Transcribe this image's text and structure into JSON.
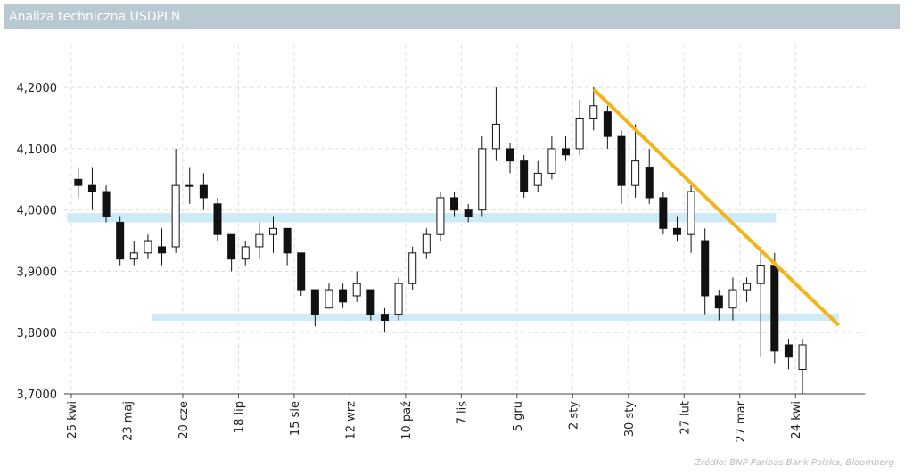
{
  "header": {
    "title": "Analiza techniczna USDPLN"
  },
  "source": "Źródło: BNP Paribas Bank Polska, Bloomberg",
  "chart_data": {
    "type": "candlestick",
    "categories": [
      "25 kwi",
      null,
      null,
      null,
      "23 maj",
      null,
      null,
      null,
      "20 cze",
      null,
      null,
      null,
      "18 lip",
      null,
      null,
      null,
      "15 sie",
      null,
      null,
      null,
      "12 wrz",
      null,
      null,
      null,
      "10 paź",
      null,
      null,
      null,
      "7 lis",
      null,
      null,
      null,
      "5 gru",
      null,
      null,
      null,
      "2 sty",
      null,
      null,
      null,
      "30 sty",
      null,
      null,
      null,
      "27 lut",
      null,
      null,
      null,
      "27 mar",
      null,
      null,
      null,
      "24 kwi",
      null,
      null,
      null,
      null
    ],
    "open": [
      4.05,
      4.04,
      4.03,
      3.98,
      3.92,
      3.93,
      3.94,
      3.94,
      4.04,
      4.04,
      4.01,
      3.96,
      3.92,
      3.94,
      3.96,
      3.97,
      3.93,
      3.87,
      3.84,
      3.87,
      3.86,
      3.87,
      3.83,
      3.83,
      3.88,
      3.93,
      3.96,
      4.02,
      4.0,
      4.0,
      4.1,
      4.1,
      4.08,
      4.04,
      4.06,
      4.1,
      4.1,
      4.15,
      4.16,
      4.12,
      4.04,
      4.07,
      4.02,
      3.97,
      3.96,
      3.95,
      3.86,
      3.84,
      3.87,
      3.88,
      3.91,
      3.78,
      3.74,
      null,
      null,
      null,
      null
    ],
    "high": [
      4.07,
      4.07,
      4.04,
      3.99,
      3.95,
      3.96,
      3.97,
      4.1,
      4.07,
      4.06,
      4.02,
      3.96,
      3.95,
      3.98,
      3.99,
      3.97,
      3.93,
      3.87,
      3.88,
      3.88,
      3.9,
      3.87,
      3.84,
      3.89,
      3.94,
      3.97,
      4.03,
      4.03,
      4.01,
      4.12,
      4.2,
      4.11,
      4.09,
      4.08,
      4.12,
      4.12,
      4.18,
      4.2,
      4.17,
      4.13,
      4.14,
      4.1,
      4.03,
      3.99,
      4.04,
      3.97,
      3.87,
      3.89,
      3.89,
      3.94,
      3.93,
      3.79,
      3.79,
      null,
      null,
      null,
      null
    ],
    "low": [
      4.02,
      4.0,
      3.98,
      3.91,
      3.91,
      3.92,
      3.91,
      3.93,
      4.01,
      4.0,
      3.95,
      3.9,
      3.91,
      3.92,
      3.93,
      3.91,
      3.86,
      3.81,
      3.84,
      3.84,
      3.85,
      3.82,
      3.8,
      3.82,
      3.87,
      3.92,
      3.95,
      3.99,
      3.98,
      3.99,
      4.08,
      4.06,
      4.02,
      4.03,
      4.05,
      4.08,
      4.09,
      4.13,
      4.1,
      4.01,
      4.02,
      4.01,
      3.96,
      3.95,
      3.93,
      3.83,
      3.82,
      3.82,
      3.85,
      3.76,
      3.75,
      3.74,
      3.7,
      null,
      null,
      null,
      null
    ],
    "close": [
      4.04,
      4.03,
      3.99,
      3.92,
      3.93,
      3.95,
      3.93,
      4.04,
      4.04,
      4.02,
      3.96,
      3.92,
      3.94,
      3.96,
      3.97,
      3.93,
      3.87,
      3.83,
      3.87,
      3.85,
      3.88,
      3.83,
      3.82,
      3.88,
      3.93,
      3.96,
      4.02,
      4.0,
      3.99,
      4.1,
      4.14,
      4.08,
      4.03,
      4.06,
      4.1,
      4.09,
      4.15,
      4.17,
      4.12,
      4.04,
      4.08,
      4.02,
      3.97,
      3.96,
      4.03,
      3.86,
      3.84,
      3.87,
      3.88,
      3.91,
      3.77,
      3.76,
      3.78,
      null,
      null,
      null,
      null
    ],
    "ylim": [
      3.7,
      4.27
    ],
    "yticks": [
      {
        "value": 3.7,
        "label": "3,7000"
      },
      {
        "value": 3.8,
        "label": "3,8000"
      },
      {
        "value": 3.9,
        "label": "3,9000"
      },
      {
        "value": 4.0,
        "label": "4,0000"
      },
      {
        "value": 4.1,
        "label": "4,1000"
      },
      {
        "value": 4.2,
        "label": "4,2000"
      }
    ],
    "grid": true,
    "bands": [
      {
        "x": [
          -0.3,
          50.6
        ],
        "y": [
          3.98,
          3.995
        ],
        "color": "#cdeaf7"
      },
      {
        "x": [
          5.8,
          55.1
        ],
        "y": [
          3.819,
          3.831
        ],
        "color": "#cdeaf7"
      }
    ],
    "trendline": {
      "x": [
        37.5,
        55.1
      ],
      "y": [
        4.197,
        3.812
      ],
      "color": "#f2b418"
    }
  }
}
